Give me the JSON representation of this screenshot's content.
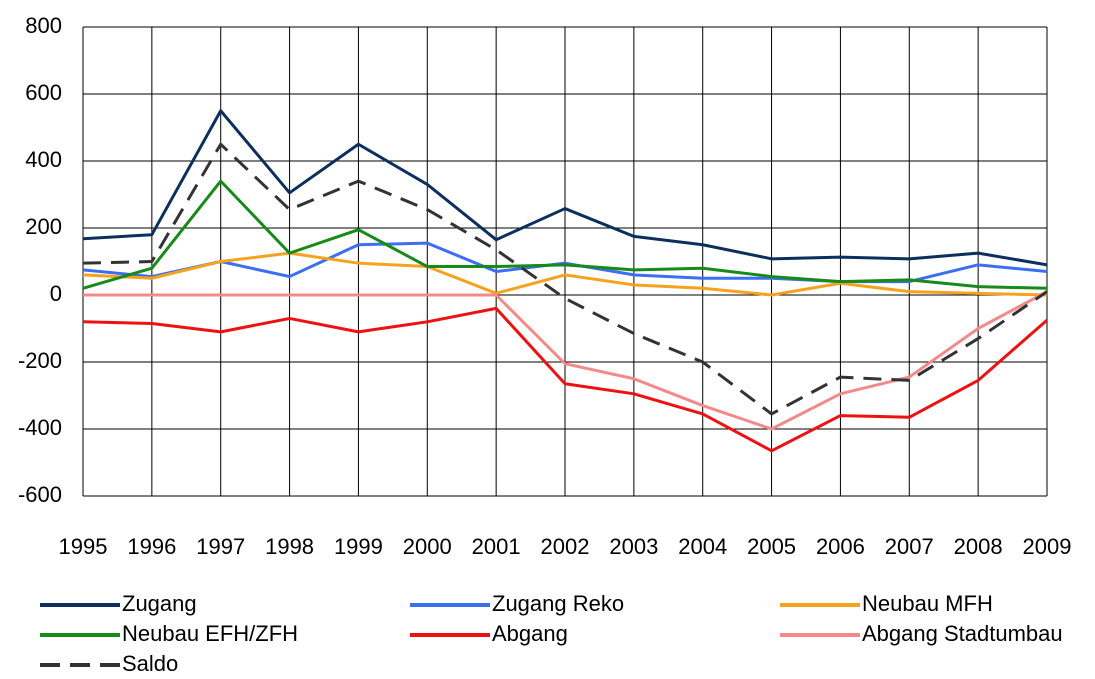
{
  "chart_data": {
    "type": "line",
    "categories": [
      "1995",
      "1996",
      "1997",
      "1998",
      "1999",
      "2000",
      "2001",
      "2002",
      "2003",
      "2004",
      "2005",
      "2006",
      "2007",
      "2008",
      "2009"
    ],
    "series": [
      {
        "name": "Zugang",
        "color": "#0c2f5c",
        "values": [
          168,
          180,
          550,
          305,
          450,
          330,
          165,
          258,
          175,
          150,
          108,
          113,
          108,
          125,
          90
        ]
      },
      {
        "name": "Zugang Reko",
        "color": "#3b6ef0",
        "values": [
          75,
          55,
          100,
          55,
          150,
          155,
          70,
          95,
          60,
          50,
          50,
          40,
          40,
          90,
          70
        ]
      },
      {
        "name": "Neubau MFH",
        "color": "#f5a21e",
        "values": [
          60,
          50,
          100,
          125,
          95,
          85,
          5,
          60,
          30,
          20,
          0,
          35,
          10,
          5,
          0
        ]
      },
      {
        "name": "Neubau EFH/ZFH",
        "color": "#178a1a",
        "values": [
          20,
          80,
          340,
          125,
          195,
          85,
          85,
          90,
          75,
          80,
          55,
          40,
          45,
          25,
          20
        ]
      },
      {
        "name": "Abgang",
        "color": "#ee1111",
        "values": [
          -80,
          -85,
          -110,
          -70,
          -110,
          -80,
          -40,
          -265,
          -295,
          -355,
          -465,
          -360,
          -365,
          -255,
          -75
        ]
      },
      {
        "name": "Abgang Stadtumbau",
        "color": "#f28a8a",
        "values": [
          0,
          0,
          0,
          0,
          0,
          0,
          0,
          -205,
          -250,
          -330,
          -400,
          -295,
          -245,
          -100,
          10
        ]
      },
      {
        "name": "Saldo",
        "color": "#333333",
        "dashed": true,
        "values": [
          95,
          100,
          450,
          255,
          340,
          255,
          135,
          -10,
          -115,
          -200,
          -355,
          -245,
          -255,
          -130,
          10
        ]
      }
    ],
    "ylim": [
      -600,
      800
    ],
    "yticks": [
      -600,
      -400,
      -200,
      0,
      200,
      400,
      600,
      800
    ],
    "grid": true
  }
}
